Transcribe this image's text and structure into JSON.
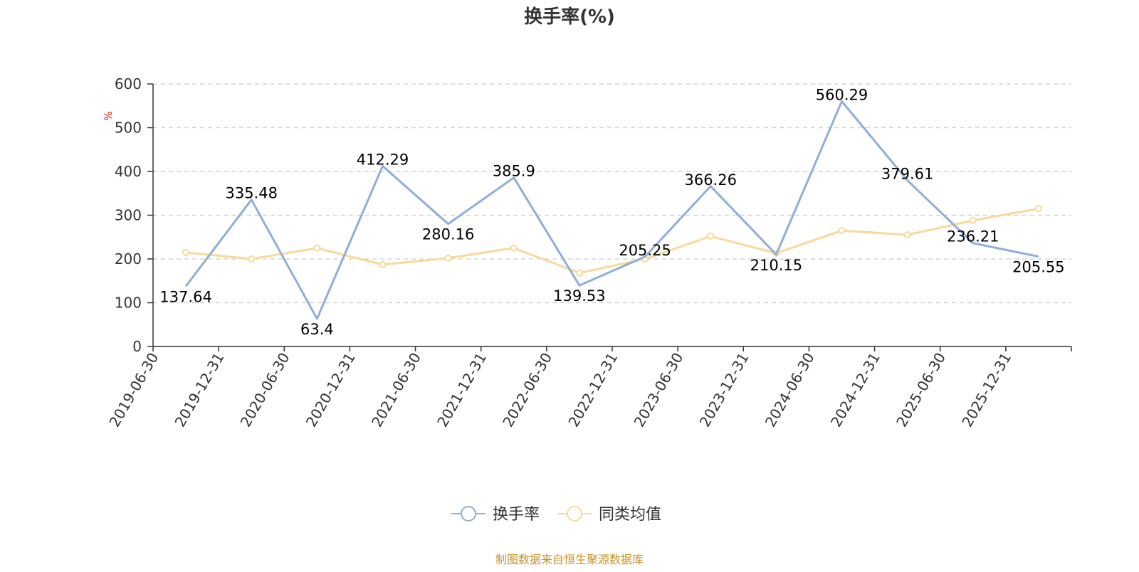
{
  "chart_data": {
    "type": "line",
    "title": "换手率(%)",
    "ylabel": "%",
    "ylim": [
      0,
      600
    ],
    "yticks": [
      0,
      100,
      200,
      300,
      400,
      500,
      600
    ],
    "x": [
      "2019-06-30",
      "2019-12-31",
      "2020-06-30",
      "2020-12-31",
      "2021-06-30",
      "2021-12-31",
      "2022-06-30",
      "2022-12-31",
      "2023-06-30",
      "2023-12-31",
      "2024-06-30",
      "2024-12-31",
      "2025-06-30",
      "2025-12-31"
    ],
    "series": [
      {
        "name": "换手率",
        "color": "#8eaedb",
        "values": [
          137.64,
          335.48,
          63.4,
          412.29,
          280.16,
          385.9,
          139.53,
          205.25,
          366.26,
          210.15,
          560.29,
          379.61,
          236.21,
          205.55
        ],
        "labels": [
          "137.64",
          "335.48",
          "63.4",
          "412.29",
          "280.16",
          "385.9",
          "139.53",
          "205.25",
          "366.26",
          "210.15",
          "560.29",
          "379.61",
          "236.21",
          "205.55"
        ]
      },
      {
        "name": "同类均值",
        "color": "#fad898",
        "values": [
          215,
          200,
          225,
          187,
          202,
          225,
          168,
          200,
          252,
          213,
          265,
          255,
          288,
          315
        ]
      }
    ],
    "grid": true,
    "legend_position": "bottom-center",
    "source_note": "制图数据来自恒生聚源数据库"
  }
}
